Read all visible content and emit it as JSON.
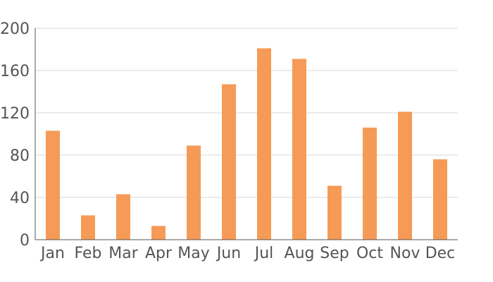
{
  "chart_data": {
    "type": "bar",
    "categories": [
      "Jan",
      "Feb",
      "Mar",
      "Apr",
      "May",
      "Jun",
      "Jul",
      "Aug",
      "Sep",
      "Oct",
      "Nov",
      "Dec"
    ],
    "values": [
      103,
      23,
      43,
      13,
      89,
      147,
      181,
      171,
      51,
      106,
      121,
      76
    ],
    "yticks": [
      "0",
      "40",
      "80",
      "120",
      "160",
      "200"
    ],
    "ylim": [
      0,
      200
    ],
    "title": "",
    "xlabel": "",
    "ylabel": "",
    "grid": true,
    "legend": "none",
    "bar_color": "#f59b57",
    "grid_color": "#d9d9d9",
    "axis_color": "#555555"
  }
}
